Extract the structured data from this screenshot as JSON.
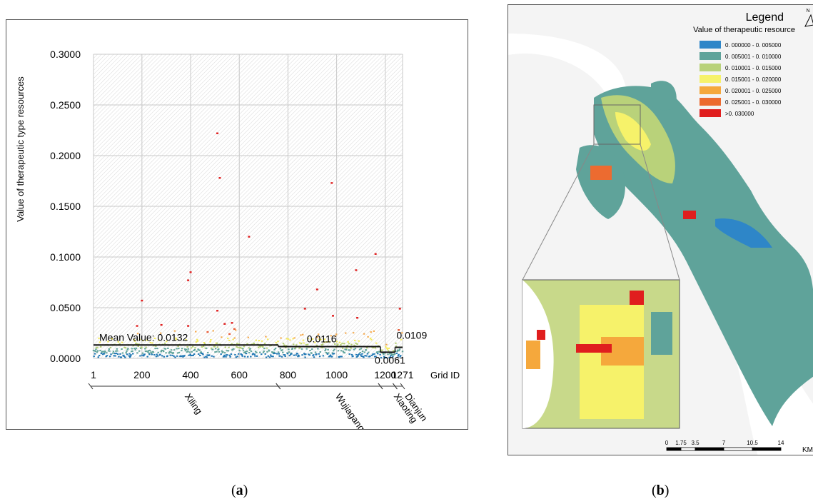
{
  "panel_a": {
    "caption_letter": "a",
    "chart_data": {
      "type": "scatter",
      "title": "",
      "xlabel": "Grid ID",
      "ylabel": "Value of therapeutic type resources",
      "xlim": [
        1,
        1271
      ],
      "ylim": [
        0,
        0.3
      ],
      "x_ticks": [
        "1",
        "200",
        "400",
        "600",
        "800",
        "1000",
        "1200",
        "1271"
      ],
      "y_ticks": [
        "0.0000",
        "0.0500",
        "0.1000",
        "0.1500",
        "0.2000",
        "0.2500",
        "0.3000"
      ],
      "grid": true,
      "color_classes": [
        "#1f77b4",
        "#5fa39a",
        "#b5cf73",
        "#f5ea5a",
        "#f5a84a",
        "#e8603c",
        "#e02020"
      ],
      "high_points": [
        {
          "x": 180,
          "y": 0.032
        },
        {
          "x": 200,
          "y": 0.057
        },
        {
          "x": 280,
          "y": 0.033
        },
        {
          "x": 390,
          "y": 0.077
        },
        {
          "x": 400,
          "y": 0.085
        },
        {
          "x": 390,
          "y": 0.032
        },
        {
          "x": 470,
          "y": 0.026
        },
        {
          "x": 510,
          "y": 0.222
        },
        {
          "x": 520,
          "y": 0.178
        },
        {
          "x": 510,
          "y": 0.047
        },
        {
          "x": 540,
          "y": 0.034
        },
        {
          "x": 570,
          "y": 0.035
        },
        {
          "x": 580,
          "y": 0.029
        },
        {
          "x": 560,
          "y": 0.024
        },
        {
          "x": 640,
          "y": 0.12
        },
        {
          "x": 870,
          "y": 0.049
        },
        {
          "x": 920,
          "y": 0.068
        },
        {
          "x": 980,
          "y": 0.173
        },
        {
          "x": 985,
          "y": 0.042
        },
        {
          "x": 1080,
          "y": 0.087
        },
        {
          "x": 1085,
          "y": 0.04
        },
        {
          "x": 1160,
          "y": 0.103
        },
        {
          "x": 1260,
          "y": 0.049
        },
        {
          "x": 1255,
          "y": 0.028
        }
      ],
      "mean_lines": [
        {
          "region": "Xiling",
          "x_start": 1,
          "x_end": 760,
          "value": 0.0132,
          "label": "Mean Value:  0.0132"
        },
        {
          "region": "Wujiagang",
          "x_start": 760,
          "x_end": 1180,
          "value": 0.0116,
          "label": "0.0116"
        },
        {
          "region": "Xiaoting",
          "x_start": 1180,
          "x_end": 1240,
          "value": 0.0061,
          "label": "0.0061"
        },
        {
          "region": "Dianjun",
          "x_start": 1240,
          "x_end": 1271,
          "value": 0.0109,
          "label": "0.0109"
        }
      ],
      "regions": [
        {
          "name": "Xiling",
          "x_start": 1,
          "x_end": 760
        },
        {
          "name": "Wujiagang",
          "x_start": 760,
          "x_end": 1180
        },
        {
          "name": "Xiaoting",
          "x_start": 1180,
          "x_end": 1240
        },
        {
          "name": "Dianjun",
          "x_start": 1240,
          "x_end": 1271
        }
      ]
    }
  },
  "panel_b": {
    "caption_letter": "b",
    "legend": {
      "title": "Legend",
      "subtitle": "Value of therapeutic resource",
      "items": [
        {
          "label": "0. 000000 - 0. 005000",
          "color": "#2e86c8"
        },
        {
          "label": "0. 005001 - 0. 010000",
          "color": "#5fa39a"
        },
        {
          "label": "0. 010001 - 0. 015000",
          "color": "#b9d27a"
        },
        {
          "label": "0. 015001 - 0. 020000",
          "color": "#f6f26a"
        },
        {
          "label": "0. 020001 - 0. 025000",
          "color": "#f5a83c"
        },
        {
          "label": "0. 025001 - 0. 030000",
          "color": "#ec6b30"
        },
        {
          "label": ">0. 030000",
          "color": "#e01e1e"
        }
      ]
    },
    "north": "N",
    "scale": {
      "labels": [
        "0",
        "1.75",
        "3.5",
        "7",
        "10.5",
        "14"
      ],
      "unit": "KM"
    }
  }
}
